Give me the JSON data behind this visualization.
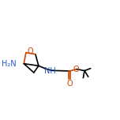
{
  "background_color": "#ffffff",
  "black": "#000000",
  "blue": "#2255cc",
  "red": "#cc4400",
  "lw": 1.2,
  "xlim": [
    0.0,
    1.08
  ],
  "ylim": [
    0.3,
    0.88
  ]
}
